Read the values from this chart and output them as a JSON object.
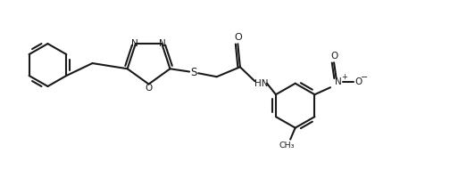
{
  "bg_color": "#ffffff",
  "line_color": "#1a1a1a",
  "line_width": 1.5,
  "fig_width": 5.04,
  "fig_height": 1.91,
  "dpi": 100,
  "xlim": [
    0,
    10
  ],
  "ylim": [
    0,
    3.8
  ]
}
